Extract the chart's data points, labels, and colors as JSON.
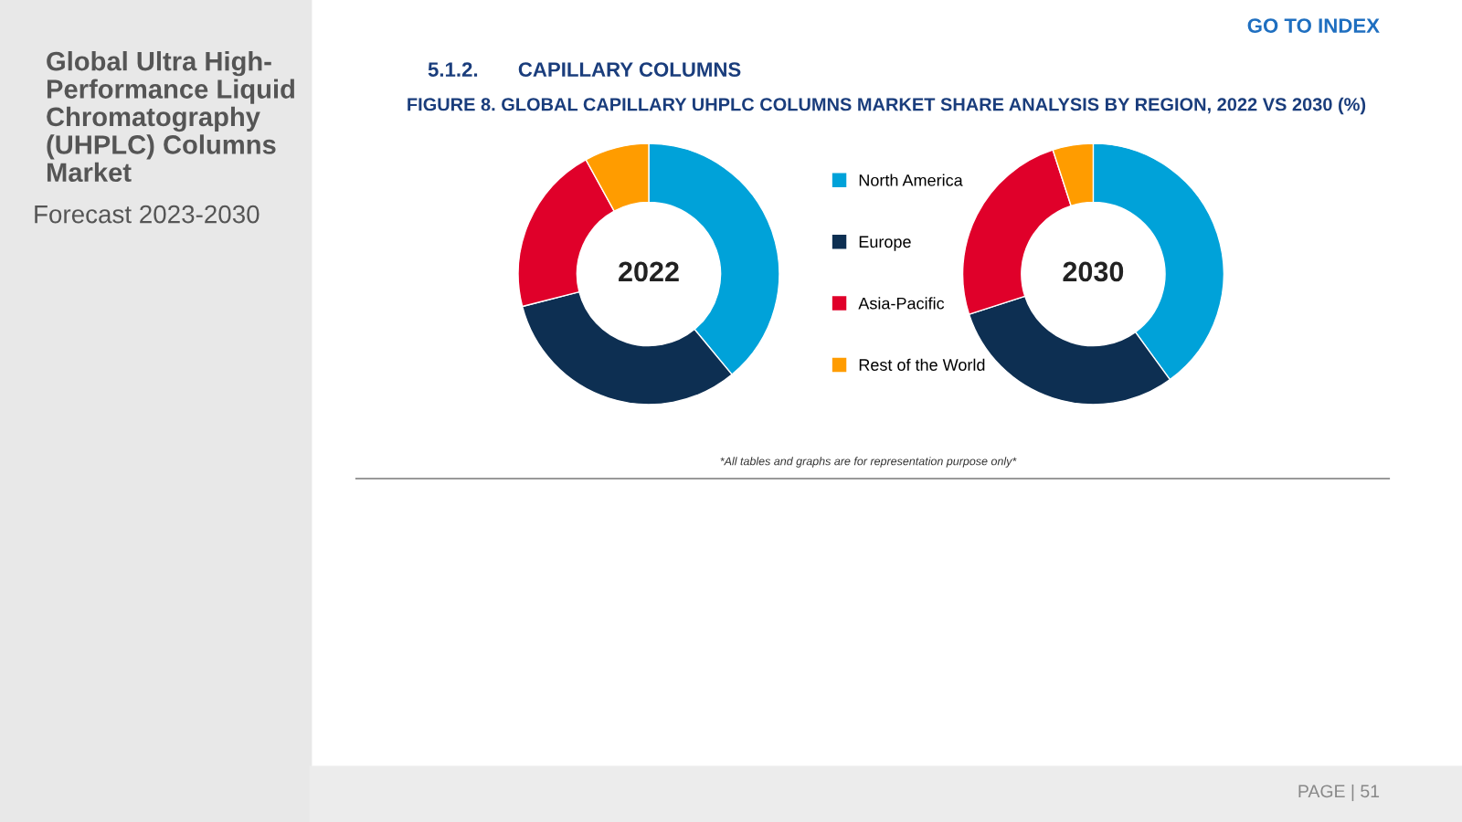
{
  "chart_data": [
    {
      "type": "donut",
      "title": "FIGURE 8. GLOBAL CAPILLARY UHPLC COLUMNS MARKET SHARE ANALYSIS BY REGION, 2022 VS 2030 (%)",
      "categories": [
        "North America",
        "Europe",
        "Asia-Pacific",
        "Rest of the World"
      ],
      "values": [
        39,
        32,
        21,
        8
      ],
      "colors": [
        "#00a2d9",
        "#0d2f52",
        "#e0002a",
        "#ff9c00"
      ],
      "legend": "right",
      "annotations": [
        "2022",
        "Global Ultra High-\nPerformance Liquid\nChromatography\n(UHPLC) Columns\nMarket",
        "Forecast 2023-2030",
        "GO TO INDEX",
        "5.1.2.       CAPILLARY COLUMNS",
        "*All tables and graphs are for representation purpose only*",
        "PAGE | 51"
      ]
    },
    {
      "type": "donut",
      "categories": [
        null,
        null,
        null,
        null
      ],
      "values": [
        40,
        30,
        25,
        5
      ],
      "colors": [
        "#00a2d9",
        "#0d2f52",
        "#e0002a",
        "#ff9c00"
      ],
      "annotations": [
        "2030"
      ]
    }
  ]
}
